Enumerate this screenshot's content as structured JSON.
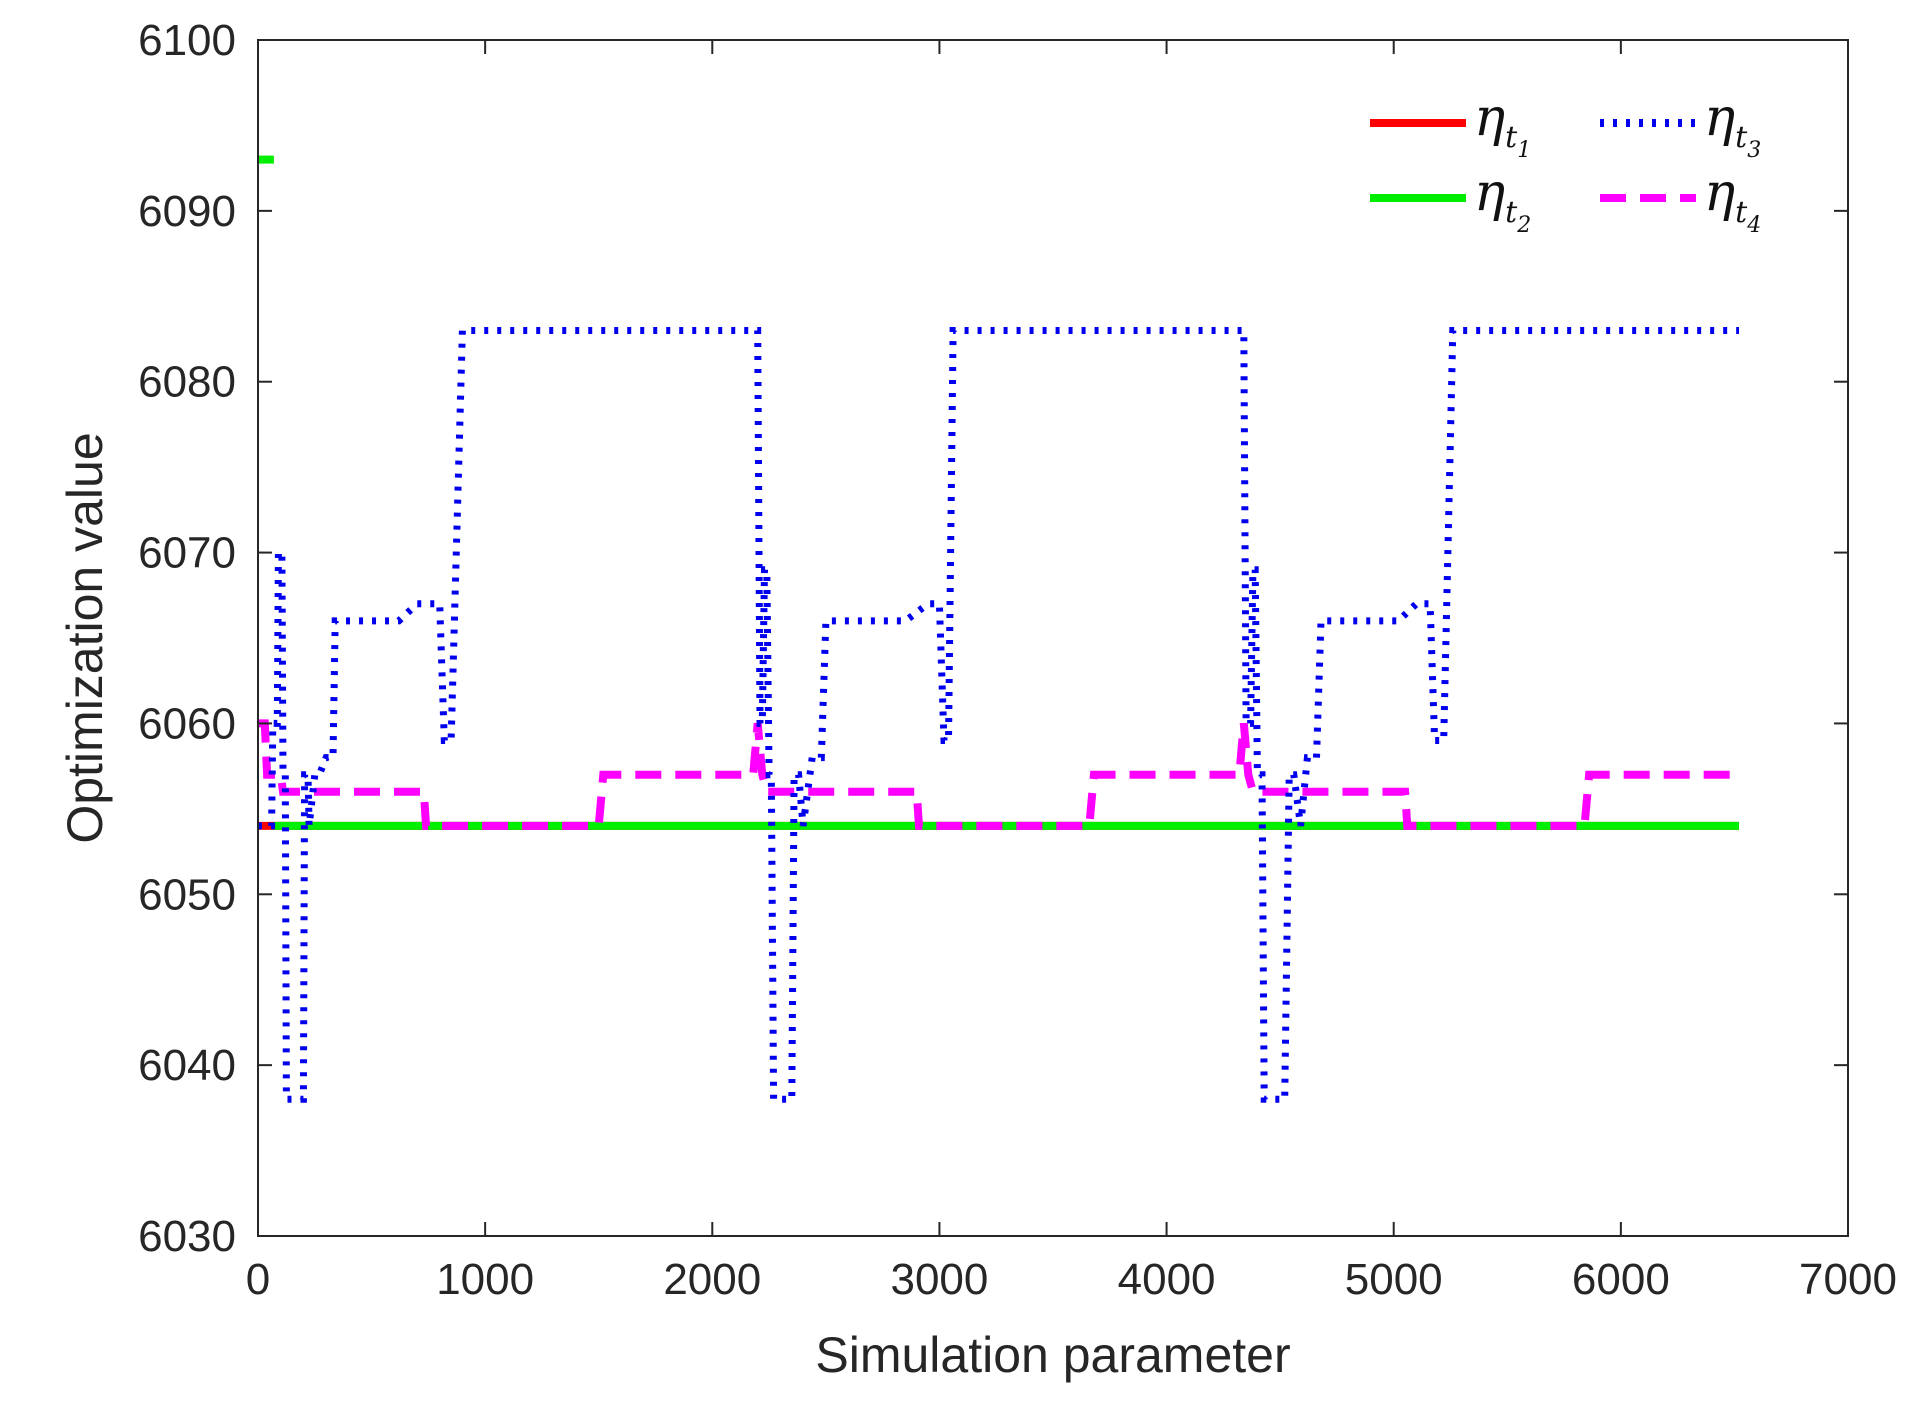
{
  "chart_data": {
    "type": "line",
    "title": "",
    "xlabel": "Simulation parameter",
    "ylabel": "Optimization value",
    "xlim": [
      0,
      7000
    ],
    "ylim": [
      6030,
      6100
    ],
    "xticks": [
      0,
      1000,
      2000,
      3000,
      4000,
      5000,
      6000,
      7000
    ],
    "yticks": [
      6030,
      6040,
      6050,
      6060,
      6070,
      6080,
      6090,
      6100
    ],
    "xtick_labels": [
      "0",
      "1000",
      "2000",
      "3000",
      "4000",
      "5000",
      "6000",
      "7000"
    ],
    "ytick_labels": [
      "6030",
      "6040",
      "6050",
      "6060",
      "6070",
      "6080",
      "6090",
      "6100"
    ],
    "grid": false,
    "legend_position": "top-right",
    "series": [
      {
        "name": "η_t1",
        "symbol": "η",
        "sub": "t",
        "subsub": "1",
        "color": "#ff0000",
        "style": "solid",
        "x": [
          0,
          6520
        ],
        "y": [
          6054,
          6054
        ]
      },
      {
        "name": "η_t2",
        "symbol": "η",
        "sub": "t",
        "subsub": "2",
        "color": "#00ee00",
        "style": "solid",
        "x": [
          70,
          6520
        ],
        "y": [
          6054,
          6054
        ],
        "extra_segment": {
          "x": [
            0,
            70
          ],
          "y": [
            6093,
            6093
          ]
        }
      },
      {
        "name": "η_t3",
        "symbol": "η",
        "sub": "t",
        "subsub": "3",
        "color": "#0000ee",
        "style": "dotted",
        "x": [
          0,
          60,
          65,
          85,
          90,
          105,
          110,
          120,
          125,
          200,
          205,
          220,
          225,
          250,
          270,
          300,
          330,
          340,
          360,
          600,
          620,
          700,
          710,
          800,
          820,
          840,
          850,
          900,
          920,
          930,
          950,
          2100,
          2150,
          2200,
          2210,
          2220,
          2230,
          2240,
          2250,
          2260,
          2270,
          2290,
          2300,
          2350,
          2360,
          2380,
          2400,
          2440,
          2480,
          2500,
          2520,
          2800,
          2850,
          2950,
          3000,
          3020,
          3040,
          3060,
          3080,
          3100,
          4250,
          4300,
          4340,
          4350,
          4370,
          4380,
          4390,
          4400,
          4420,
          4430,
          4450,
          4460,
          4520,
          4540,
          4560,
          4590,
          4620,
          4660,
          4680,
          4700,
          4980,
          5020,
          5100,
          5160,
          5180,
          5220,
          5260,
          5280,
          6520
        ],
        "y": [
          6054,
          6054,
          6060,
          6060,
          6070,
          6070,
          6057,
          6057,
          6038,
          6038,
          6057,
          6057,
          6054,
          6057,
          6057,
          6058,
          6058,
          6066,
          6066,
          6066,
          6066,
          6067,
          6067,
          6067,
          6059,
          6059,
          6059,
          6083,
          6083,
          6083,
          6083,
          6083,
          6083,
          6083,
          6060,
          6060,
          6069,
          6069,
          6057,
          6057,
          6038,
          6038,
          6038,
          6038,
          6057,
          6057,
          6054,
          6058,
          6058,
          6066,
          6066,
          6066,
          6066,
          6067,
          6067,
          6059,
          6059,
          6083,
          6083,
          6083,
          6083,
          6083,
          6083,
          6060,
          6060,
          6069,
          6069,
          6057,
          6057,
          6038,
          6038,
          6038,
          6038,
          6057,
          6057,
          6054,
          6058,
          6058,
          6066,
          6066,
          6066,
          6066,
          6067,
          6067,
          6059,
          6059,
          6083,
          6083,
          6083
        ]
      },
      {
        "name": "η_t4",
        "symbol": "η",
        "sub": "t",
        "subsub": "4",
        "color": "#ff00ff",
        "style": "dashed",
        "x": [
          0,
          30,
          40,
          100,
          110,
          150,
          160,
          730,
          740,
          1500,
          1520,
          2180,
          2200,
          2220,
          2240,
          2900,
          2910,
          3660,
          3680,
          4320,
          4340,
          4360,
          4380,
          5050,
          5060,
          5840,
          5860,
          6520
        ],
        "y": [
          6060,
          6060,
          6057,
          6057,
          6056,
          6056,
          6056,
          6056,
          6054,
          6054,
          6057,
          6057,
          6060,
          6057,
          6056,
          6056,
          6054,
          6054,
          6057,
          6057,
          6060,
          6057,
          6056,
          6056,
          6054,
          6054,
          6057,
          6057
        ]
      }
    ]
  }
}
